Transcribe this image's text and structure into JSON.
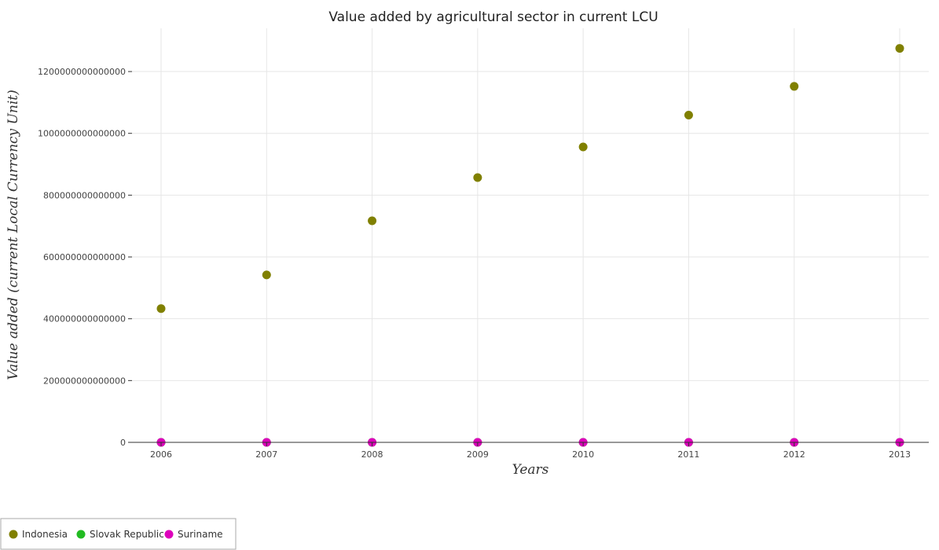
{
  "chart_data": {
    "type": "scatter",
    "title": "Value added by agricultural sector in current LCU",
    "xlabel": "Years",
    "ylabel": "Value added (current Local Currency Unit)",
    "x": [
      "2006",
      "2007",
      "2008",
      "2009",
      "2010",
      "2011",
      "2012",
      "2013"
    ],
    "ylim": [
      0,
      1340000000000000
    ],
    "yticks": [
      0,
      200000000000000,
      400000000000000,
      600000000000000,
      800000000000000,
      1000000000000000,
      1200000000000000
    ],
    "ytick_labels": [
      "0",
      "200000000000000",
      "400000000000000",
      "600000000000000",
      "800000000000000",
      "1000000000000000",
      "1200000000000000"
    ],
    "grid": true,
    "legend_position": "bottom-left",
    "series": [
      {
        "name": "Indonesia",
        "color": "#808000",
        "values": [
          433000000000000,
          542000000000000,
          717000000000000,
          857000000000000,
          956000000000000,
          1059000000000000,
          1152000000000000,
          1275000000000000
        ]
      },
      {
        "name": "Slovak Republic",
        "color": "#22bb22",
        "values": [
          2000000000,
          2100000000,
          2300000000,
          1600000000,
          1700000000,
          2100000000,
          2000000000,
          2200000000
        ]
      },
      {
        "name": "Suriname",
        "color": "#dd00bb",
        "values": [
          500000000,
          550000000,
          650000000,
          700000000,
          800000000,
          900000000,
          1000000000,
          1100000000
        ]
      }
    ]
  }
}
